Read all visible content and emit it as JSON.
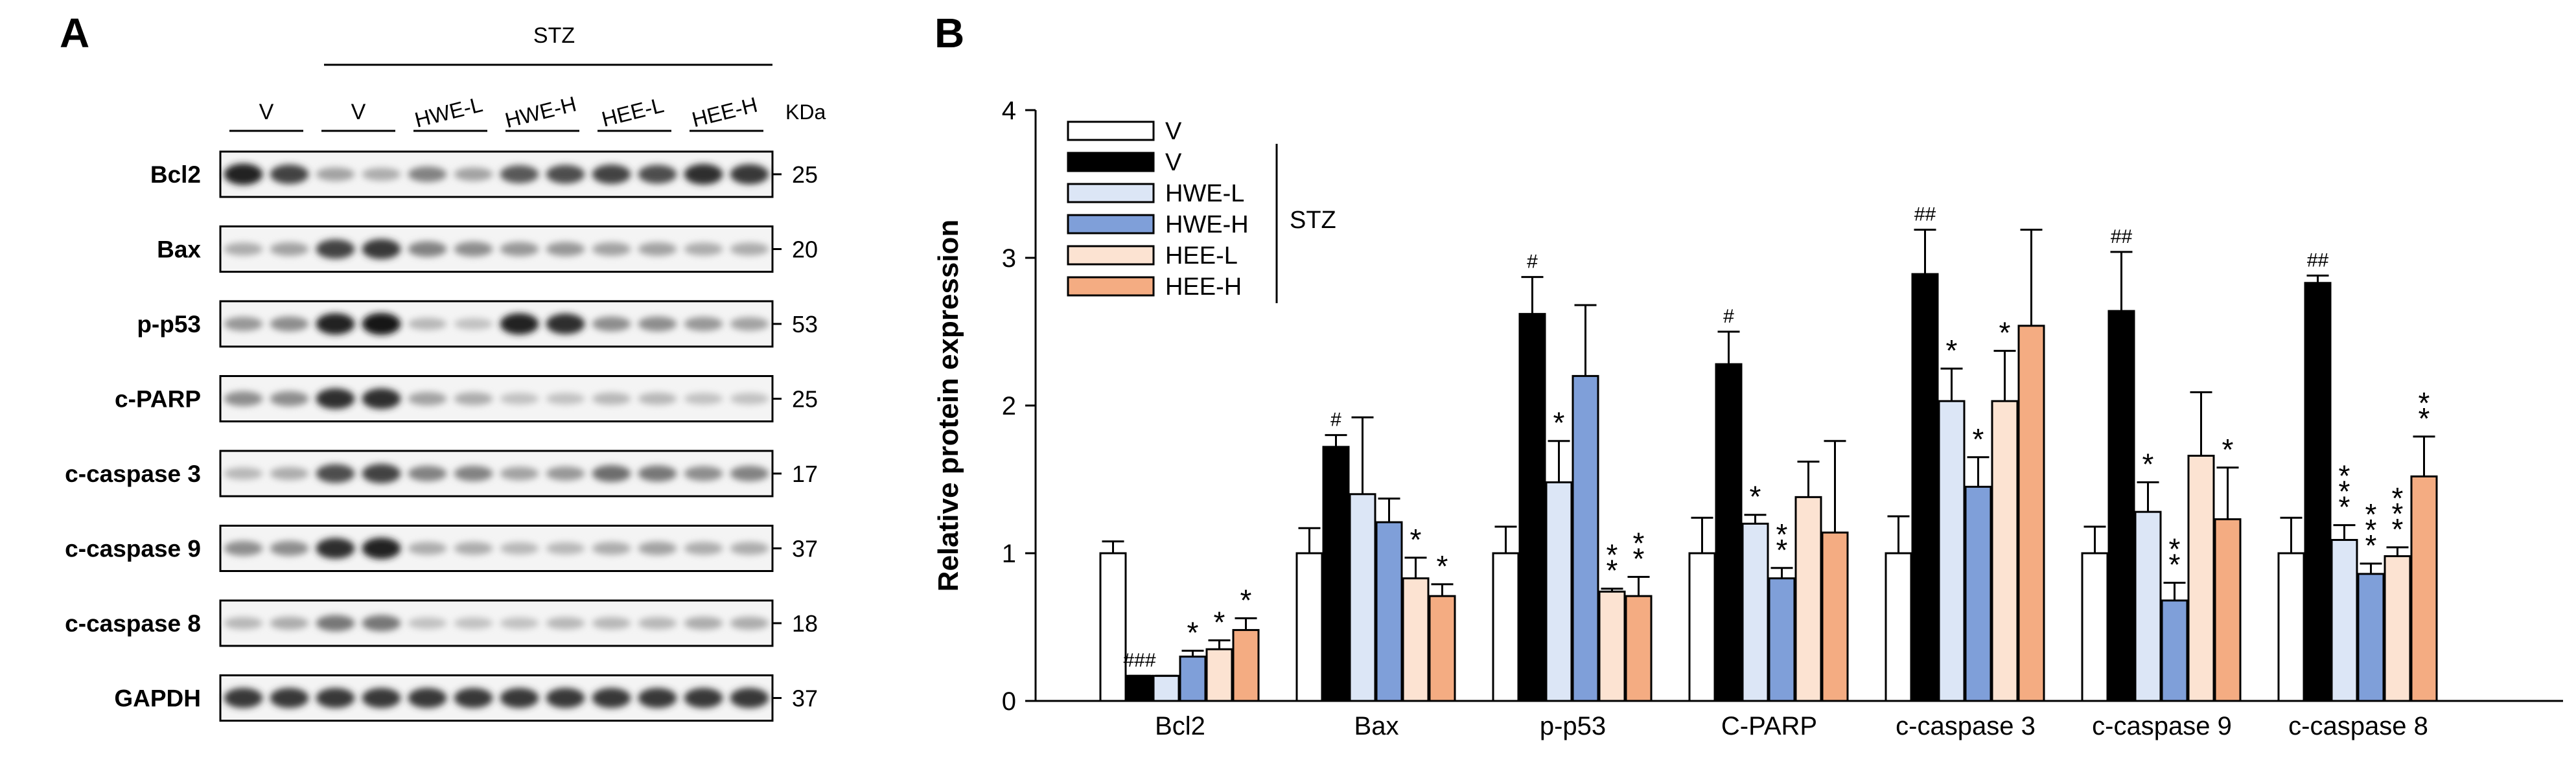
{
  "panel_a": {
    "letter": "A",
    "stz_label": "STZ",
    "kda_label": "KDa",
    "lane_groups": [
      "V",
      "V",
      "HWE-L",
      "HWE-H",
      "HEE-L",
      "HEE-H"
    ],
    "blots": [
      {
        "protein": "Bcl2",
        "kda": "25",
        "intensity": [
          0.95,
          0.8,
          0.35,
          0.3,
          0.5,
          0.35,
          0.7,
          0.75,
          0.8,
          0.75,
          0.9,
          0.85
        ]
      },
      {
        "protein": "Bax",
        "kda": "20",
        "intensity": [
          0.3,
          0.35,
          0.8,
          0.85,
          0.5,
          0.45,
          0.4,
          0.4,
          0.35,
          0.35,
          0.3,
          0.3
        ]
      },
      {
        "protein": "p-p53",
        "kda": "53",
        "intensity": [
          0.4,
          0.45,
          0.95,
          1.0,
          0.25,
          0.2,
          0.95,
          0.9,
          0.45,
          0.45,
          0.4,
          0.35
        ]
      },
      {
        "protein": "c-PARP",
        "kda": "25",
        "intensity": [
          0.45,
          0.45,
          0.9,
          0.9,
          0.35,
          0.3,
          0.2,
          0.2,
          0.25,
          0.25,
          0.2,
          0.2
        ]
      },
      {
        "protein": "c-caspase 3",
        "kda": "17",
        "intensity": [
          0.25,
          0.3,
          0.75,
          0.8,
          0.5,
          0.5,
          0.35,
          0.4,
          0.6,
          0.55,
          0.45,
          0.5
        ]
      },
      {
        "protein": "c-caspase 9",
        "kda": "37",
        "intensity": [
          0.45,
          0.45,
          0.9,
          0.95,
          0.3,
          0.3,
          0.25,
          0.25,
          0.3,
          0.35,
          0.3,
          0.3
        ]
      },
      {
        "protein": "c-caspase 8",
        "kda": "18",
        "intensity": [
          0.25,
          0.3,
          0.55,
          0.55,
          0.2,
          0.2,
          0.2,
          0.25,
          0.25,
          0.25,
          0.3,
          0.3
        ]
      },
      {
        "protein": "GAPDH",
        "kda": "37",
        "intensity": [
          0.85,
          0.85,
          0.85,
          0.85,
          0.85,
          0.85,
          0.85,
          0.85,
          0.85,
          0.85,
          0.85,
          0.85
        ]
      }
    ]
  },
  "chart_data": {
    "type": "bar",
    "panel_letter": "B",
    "title": "",
    "xlabel": "",
    "ylabel": "Relative protein expression",
    "ylim": [
      0,
      4
    ],
    "yticks": [
      "0",
      "1",
      "2",
      "3",
      "4"
    ],
    "grid": false,
    "legend_position": "top-left",
    "legend_bracket_label": "STZ",
    "categories": [
      "Bcl2",
      "Bax",
      "p-p53",
      "C-PARP",
      "c-caspase 3",
      "c-caspase 9",
      "c-caspase 8"
    ],
    "series": [
      {
        "name": "V",
        "color": "#ffffff",
        "values": [
          1.0,
          1.0,
          1.0,
          1.0,
          1.0,
          1.0,
          1.0
        ],
        "errors": [
          0.08,
          0.17,
          0.18,
          0.24,
          0.25,
          0.18,
          0.24
        ],
        "marks": [
          "",
          "",
          "",
          "",
          "",
          "",
          ""
        ]
      },
      {
        "name": "V",
        "color": "#000000",
        "values": [
          0.17,
          1.72,
          2.62,
          2.28,
          2.89,
          2.64,
          2.83
        ],
        "errors": [
          0.0,
          0.08,
          0.25,
          0.22,
          0.3,
          0.4,
          0.05
        ],
        "marks": [
          "###",
          "#",
          "#",
          "#",
          "##",
          "##",
          "##"
        ]
      },
      {
        "name": "HWE-L",
        "color": "#dce6f6",
        "values": [
          0.17,
          1.4,
          1.48,
          1.2,
          2.03,
          1.28,
          1.09
        ],
        "errors": [
          0.0,
          0.52,
          0.28,
          0.06,
          0.22,
          0.2,
          0.1
        ],
        "marks": [
          "",
          "",
          "*",
          "*",
          "*",
          "*",
          "***"
        ]
      },
      {
        "name": "HWE-H",
        "color": "#7f9fd9",
        "values": [
          0.3,
          1.21,
          2.2,
          0.83,
          1.45,
          0.68,
          0.86
        ],
        "errors": [
          0.04,
          0.16,
          0.48,
          0.07,
          0.2,
          0.12,
          0.07
        ],
        "marks": [
          "*",
          "",
          "",
          "**",
          "*",
          "**",
          "***"
        ]
      },
      {
        "name": "HEE-L",
        "color": "#fce3d2",
        "values": [
          0.35,
          0.83,
          0.74,
          1.38,
          2.03,
          1.66,
          0.98
        ],
        "errors": [
          0.06,
          0.14,
          0.02,
          0.24,
          0.34,
          0.43,
          0.06
        ],
        "marks": [
          "*",
          "*",
          "**",
          "",
          "*",
          "",
          "***"
        ]
      },
      {
        "name": "HEE-H",
        "color": "#f4ac82",
        "values": [
          0.48,
          0.71,
          0.71,
          1.14,
          2.54,
          1.23,
          1.52
        ],
        "errors": [
          0.08,
          0.08,
          0.13,
          0.62,
          0.65,
          0.35,
          0.27
        ],
        "marks": [
          "*",
          "*",
          "**",
          "",
          "",
          "*",
          "**"
        ]
      }
    ]
  }
}
